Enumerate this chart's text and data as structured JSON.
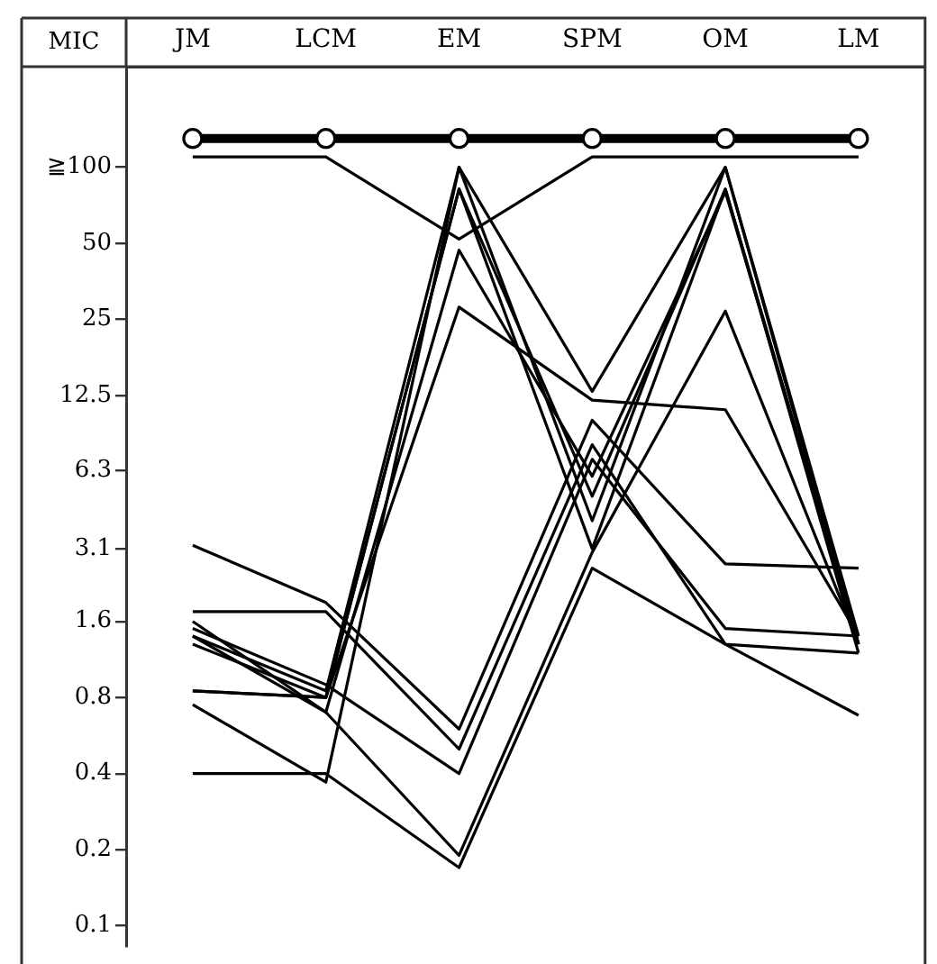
{
  "chart_data": {
    "type": "line",
    "ylabel": "MIC",
    "categories": [
      "JM",
      "LCM",
      "EM",
      "SPM",
      "OM",
      "LM"
    ],
    "log": "y",
    "ylim": [
      0.083,
      250
    ],
    "yticks": [
      0.1,
      0.2,
      0.4,
      0.8,
      1.6,
      3.1,
      6.3,
      12.5,
      25,
      50,
      {
        "value": 100,
        "label": "≧100"
      }
    ],
    "grid": false,
    "legend": false,
    "line_style": "solid",
    "series": [
      {
        "color": "#000000",
        "marker": "circle",
        "values": [
          130,
          130,
          130,
          130,
          130,
          130
        ]
      },
      {
        "color": "#000000",
        "marker": "none",
        "values": [
          110,
          110,
          52,
          110,
          110,
          110
        ]
      },
      {
        "color": "#000000",
        "marker": "none",
        "values": [
          3.2,
          1.9,
          0.6,
          10,
          2.7,
          2.6
        ]
      },
      {
        "color": "#000000",
        "marker": "none",
        "values": [
          1.75,
          1.75,
          0.5,
          8,
          1.3,
          1.2
        ]
      },
      {
        "color": "#000000",
        "marker": "none",
        "values": [
          1.5,
          0.9,
          0.4,
          7,
          1.5,
          1.4
        ]
      },
      {
        "color": "#000000",
        "marker": "none",
        "values": [
          1.4,
          0.85,
          100,
          4,
          100,
          1.4
        ]
      },
      {
        "color": "#000000",
        "marker": "none",
        "values": [
          1.3,
          0.8,
          82,
          3.1,
          82,
          1.3
        ]
      },
      {
        "color": "#000000",
        "marker": "none",
        "values": [
          0.85,
          0.8,
          28,
          12,
          11,
          1.4
        ]
      },
      {
        "color": "#000000",
        "marker": "none",
        "values": [
          0.85,
          0.8,
          82,
          5,
          82,
          1.2
        ]
      },
      {
        "color": "#000000",
        "marker": "none",
        "values": [
          0.75,
          0.37,
          100,
          13,
          100,
          1.3
        ]
      },
      {
        "color": "#000000",
        "marker": "none",
        "values": [
          0.4,
          0.4,
          0.17,
          2.6,
          1.3,
          0.68
        ]
      },
      {
        "color": "#000000",
        "marker": "none",
        "values": [
          1.6,
          0.7,
          0.19,
          3,
          27,
          1.3
        ]
      },
      {
        "color": "#000000",
        "marker": "none",
        "values": [
          1.4,
          0.7,
          47,
          6,
          80,
          1.3
        ]
      }
    ]
  }
}
